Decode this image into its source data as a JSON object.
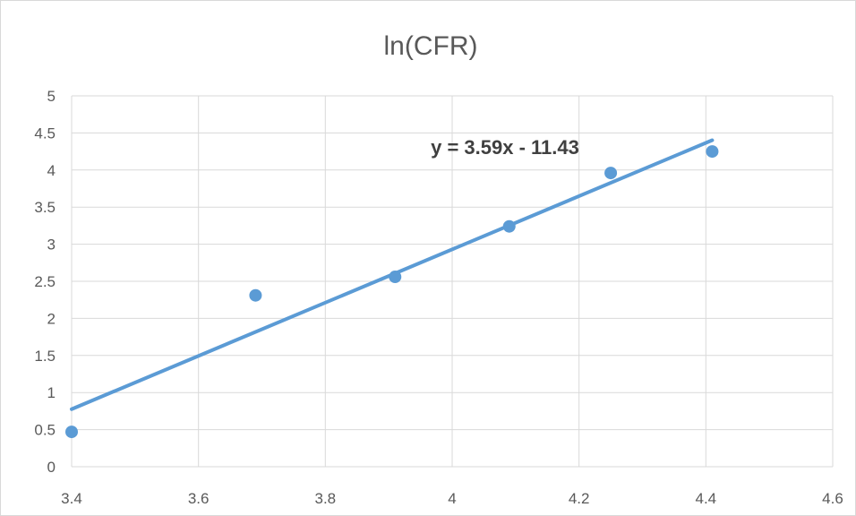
{
  "chart_data": {
    "type": "scatter",
    "title": "ln(CFR)",
    "xlabel": "",
    "ylabel": "",
    "xlim": [
      3.4,
      4.6
    ],
    "ylim": [
      0,
      5
    ],
    "x_ticks": [
      "3.4",
      "3.6",
      "3.8",
      "4",
      "4.2",
      "4.4",
      "4.6"
    ],
    "y_ticks": [
      "0",
      "0.5",
      "1",
      "1.5",
      "2",
      "2.5",
      "3",
      "3.5",
      "4",
      "4.5",
      "5"
    ],
    "grid": true,
    "legend": "none",
    "series": [
      {
        "points": [
          {
            "x": 3.4,
            "y": 0.47
          },
          {
            "x": 3.69,
            "y": 2.31
          },
          {
            "x": 3.91,
            "y": 2.56
          },
          {
            "x": 4.09,
            "y": 3.24
          },
          {
            "x": 4.25,
            "y": 3.96
          },
          {
            "x": 4.41,
            "y": 4.25
          }
        ]
      }
    ],
    "trendline": {
      "equation": "y = 3.59x - 11.43",
      "slope": 3.59,
      "intercept": -11.43,
      "x_range": [
        3.4,
        4.41
      ]
    },
    "colors": {
      "marker": "#5b9bd5",
      "trendline": "#5b9bd5",
      "grid": "#d9d9d9",
      "text": "#595959"
    }
  }
}
